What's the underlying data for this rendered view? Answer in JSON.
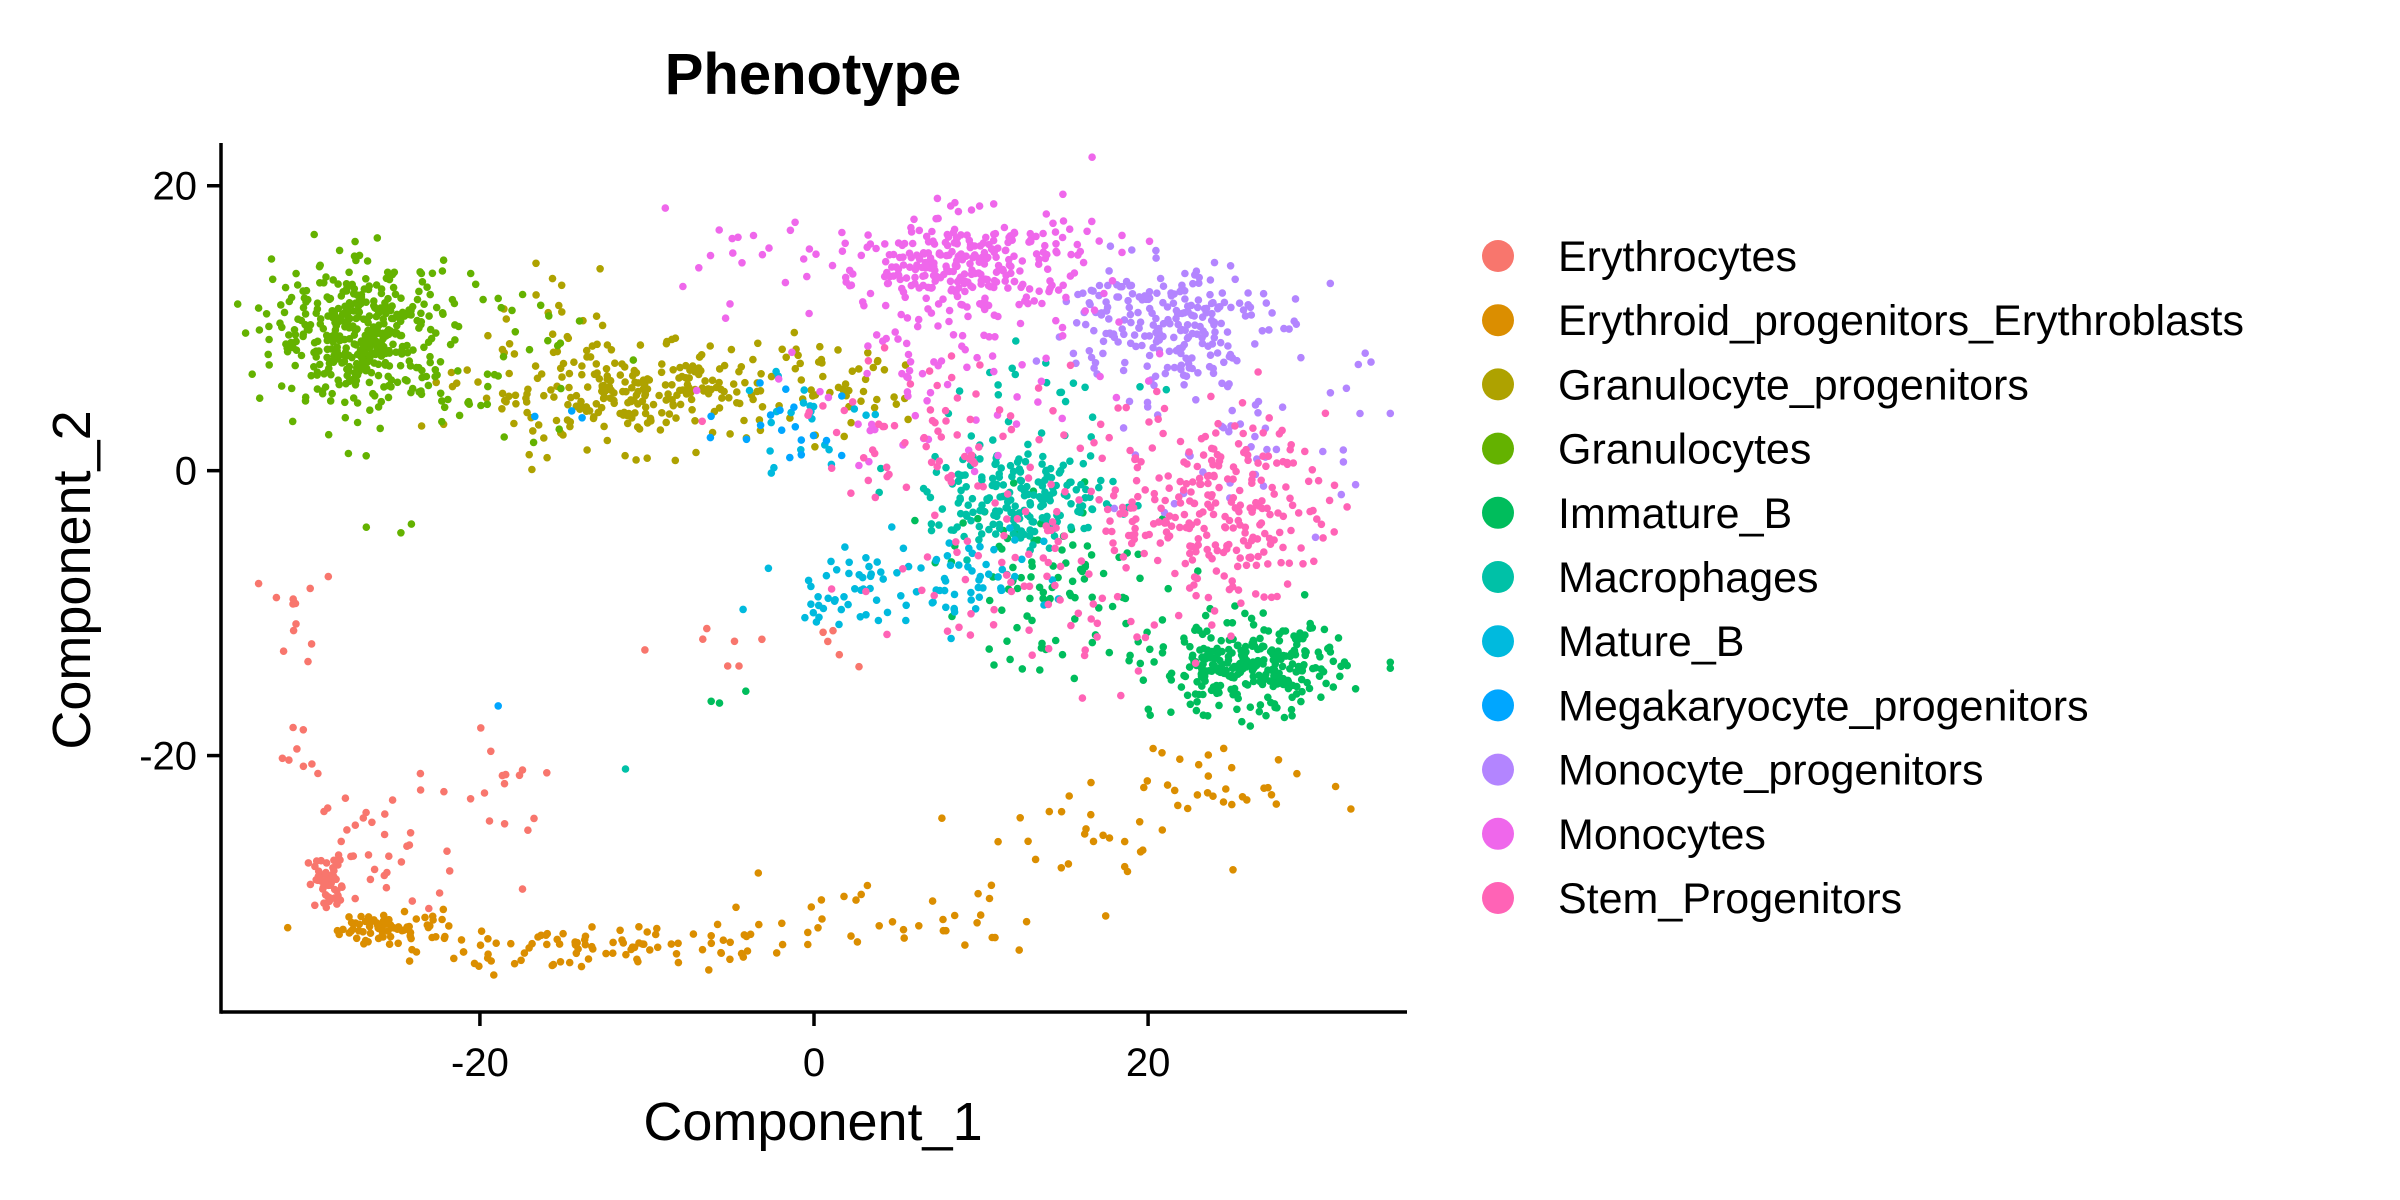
{
  "chart_data": {
    "type": "scatter",
    "title": "Phenotype",
    "xlabel": "Component_1",
    "ylabel": "Component_2",
    "xlim": [
      -35.5,
      35.5
    ],
    "ylim": [
      -38,
      23
    ],
    "xticks": [
      -20,
      0,
      20
    ],
    "yticks": [
      -20,
      0,
      20
    ],
    "grid": false,
    "legend_position": "right",
    "series": [
      {
        "name": "Erythrocytes",
        "color": "#F8766D",
        "clusters": [
          {
            "center": [
              -29,
              -29
            ],
            "spread": [
              0.7,
              1.0
            ],
            "count": 50
          },
          {
            "center": [
              -26,
              -26.5
            ],
            "spread": [
              1.8,
              2.0
            ],
            "count": 30
          },
          {
            "center": [
              -19.5,
              -24
            ],
            "spread": [
              2.2,
              2.8
            ],
            "count": 18
          },
          {
            "center": [
              -31.2,
              -10
            ],
            "spread": [
              0.8,
              2.2
            ],
            "count": 12
          },
          {
            "center": [
              -30.5,
              -20
            ],
            "spread": [
              0.7,
              1.0
            ],
            "count": 8
          },
          {
            "center": [
              -5,
              -12
            ],
            "spread": [
              3.0,
              1.2
            ],
            "count": 8
          },
          {
            "center": [
              3,
              -12.5
            ],
            "spread": [
              2.0,
              0.8
            ],
            "count": 4
          }
        ]
      },
      {
        "name": "Erythroid_progenitors_Erythroblasts",
        "color": "#DB8E00",
        "clusters": [
          {
            "center": [
              -25,
              -32
            ],
            "spread": [
              2.0,
              0.6
            ],
            "count": 70
          },
          {
            "center": [
              -14,
              -33.5
            ],
            "spread": [
              5.0,
              0.8
            ],
            "count": 90
          },
          {
            "center": [
              4,
              -31.5
            ],
            "spread": [
              6.0,
              1.2
            ],
            "count": 40
          },
          {
            "center": [
              16,
              -26
            ],
            "spread": [
              3.5,
              1.8
            ],
            "count": 25
          },
          {
            "center": [
              24,
              -22
            ],
            "spread": [
              3.0,
              1.5
            ],
            "count": 30
          }
        ]
      },
      {
        "name": "Granulocyte_progenitors",
        "color": "#AEA200",
        "clusters": [
          {
            "center": [
              -11,
              5.5
            ],
            "spread": [
              5.0,
              1.8
            ],
            "count": 260
          },
          {
            "center": [
              1,
              5.5
            ],
            "spread": [
              2.2,
              1.6
            ],
            "count": 40
          },
          {
            "center": [
              -16,
              12
            ],
            "spread": [
              2.0,
              1.8
            ],
            "count": 12
          }
        ]
      },
      {
        "name": "Granulocytes",
        "color": "#64B200",
        "clusters": [
          {
            "center": [
              -27,
              9.5
            ],
            "spread": [
              2.6,
              2.5
            ],
            "count": 420
          },
          {
            "center": [
              -19,
              8
            ],
            "spread": [
              3.0,
              3.2
            ],
            "count": 40
          },
          {
            "center": [
              -25,
              -4
            ],
            "spread": [
              3.0,
              0.8
            ],
            "count": 3
          }
        ]
      },
      {
        "name": "Immature_B",
        "color": "#00BD5C",
        "clusters": [
          {
            "center": [
              26,
              -14
            ],
            "spread": [
              2.8,
              1.6
            ],
            "count": 280
          },
          {
            "center": [
              15,
              -8
            ],
            "spread": [
              4.0,
              3.0
            ],
            "count": 100
          },
          {
            "center": [
              -5,
              -15
            ],
            "spread": [
              1.2,
              0.7
            ],
            "count": 3
          }
        ]
      },
      {
        "name": "Macrophages",
        "color": "#00C1A7",
        "clusters": [
          {
            "center": [
              12.5,
              -2
            ],
            "spread": [
              2.8,
              1.8
            ],
            "count": 200
          },
          {
            "center": [
              14,
              5.5
            ],
            "spread": [
              4.0,
              1.4
            ],
            "count": 20
          },
          {
            "center": [
              -11,
              -20
            ],
            "spread": [
              0.5,
              0.5
            ],
            "count": 1
          }
        ]
      },
      {
        "name": "Mature_B",
        "color": "#00BADE",
        "clusters": [
          {
            "center": [
              2,
              -8.5
            ],
            "spread": [
              2.0,
              1.3
            ],
            "count": 40
          },
          {
            "center": [
              8,
              -7.5
            ],
            "spread": [
              3.0,
              1.5
            ],
            "count": 60
          },
          {
            "center": [
              -1,
              3.5
            ],
            "spread": [
              2.5,
              2.0
            ],
            "count": 22
          }
        ]
      },
      {
        "name": "Megakaryocyte_progenitors",
        "color": "#00A6FF",
        "clusters": [
          {
            "center": [
              -1,
              3.5
            ],
            "spread": [
              2.2,
              1.8
            ],
            "count": 18
          },
          {
            "center": [
              -19,
              -16.5
            ],
            "spread": [
              0.4,
              0.4
            ],
            "count": 1
          },
          {
            "center": [
              -14,
              3.5
            ],
            "spread": [
              1.0,
              0.6
            ],
            "count": 3
          }
        ]
      },
      {
        "name": "Monocyte_progenitors",
        "color": "#B385FF",
        "clusters": [
          {
            "center": [
              21,
              10.5
            ],
            "spread": [
              3.0,
              2.2
            ],
            "count": 220
          },
          {
            "center": [
              26,
              3
            ],
            "spread": [
              3.5,
              4.0
            ],
            "count": 60
          }
        ]
      },
      {
        "name": "Monocytes",
        "color": "#EF67EB",
        "clusters": [
          {
            "center": [
              9,
              14.5
            ],
            "spread": [
              4.0,
              1.8
            ],
            "count": 300
          },
          {
            "center": [
              7,
              7
            ],
            "spread": [
              5.0,
              3.5
            ],
            "count": 80
          },
          {
            "center": [
              -5,
              16
            ],
            "spread": [
              3.0,
              2.2
            ],
            "count": 14
          }
        ]
      },
      {
        "name": "Stem_Progenitors",
        "color": "#FF63B6",
        "clusters": [
          {
            "center": [
              24.5,
              -2.5
            ],
            "spread": [
              3.0,
              3.0
            ],
            "count": 220
          },
          {
            "center": [
              16,
              -5
            ],
            "spread": [
              5.5,
              5.0
            ],
            "count": 140
          },
          {
            "center": [
              8,
              3
            ],
            "spread": [
              5.0,
              2.5
            ],
            "count": 60
          }
        ]
      }
    ]
  }
}
